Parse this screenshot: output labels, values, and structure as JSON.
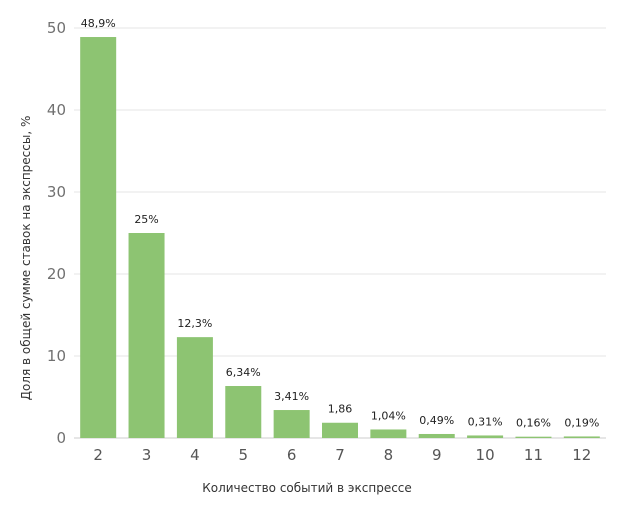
{
  "chart_data": {
    "type": "bar",
    "categories": [
      "2",
      "3",
      "4",
      "5",
      "6",
      "7",
      "8",
      "9",
      "10",
      "11",
      "12"
    ],
    "values": [
      48.9,
      25,
      12.3,
      6.34,
      3.41,
      1.86,
      1.04,
      0.49,
      0.31,
      0.16,
      0.19
    ],
    "data_labels": [
      "48,9%",
      "25%",
      "12,3%",
      "6,34%",
      "3,41%",
      "1,86",
      "1,04%",
      "0,49%",
      "0,31%",
      "0,16%",
      "0,19%"
    ],
    "title": "",
    "xlabel": "Количество событий в экспрессе",
    "ylabel": "Доля в общей сумме ставок на экспрессы, %",
    "ylim": [
      0,
      50
    ],
    "yticks": [
      0,
      10,
      20,
      30,
      40,
      50
    ],
    "grid": true,
    "legend": "none",
    "bar_color": "#8dc472"
  }
}
